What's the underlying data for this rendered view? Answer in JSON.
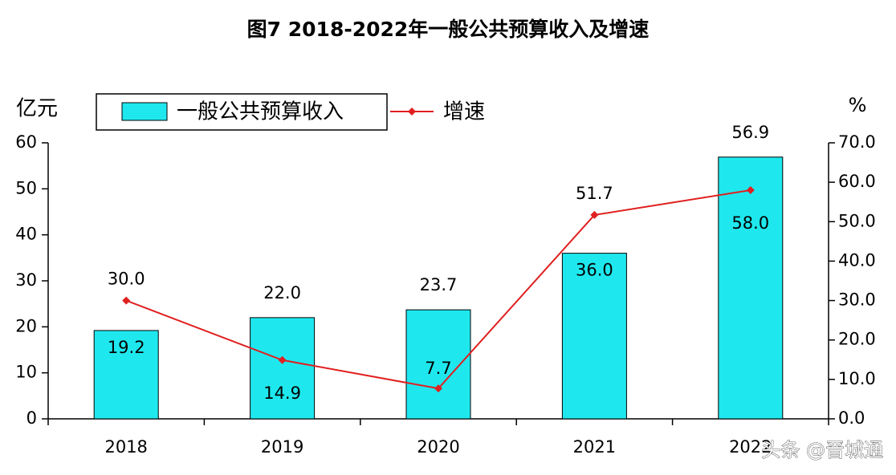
{
  "chart_data": {
    "type": "bar-line",
    "title": "图7 2018-2022年一般公共预算收入及增速",
    "y_axis_label": "亿元",
    "y2_axis_label": "%",
    "categories": [
      "2018",
      "2019",
      "2020",
      "2021",
      "2022"
    ],
    "series": [
      {
        "name": "一般公共预算收入",
        "type": "bar",
        "color": "#1ee8ee",
        "values": [
          19.2,
          22.0,
          23.7,
          36.0,
          56.9
        ],
        "value_labels": [
          "19.2",
          "22.0",
          "23.7",
          "36.0",
          "56.9"
        ]
      },
      {
        "name": "增速",
        "type": "line",
        "axis": "y2",
        "color": "#e02020",
        "values": [
          30.0,
          14.9,
          7.7,
          51.7,
          58.0
        ],
        "value_labels": [
          "30.0",
          "14.9",
          "7.7",
          "51.7",
          "58.0"
        ]
      }
    ],
    "ylim": [
      0,
      60
    ],
    "yticks": [
      0,
      10,
      20,
      30,
      40,
      50,
      60
    ],
    "y2lim": [
      0,
      70
    ],
    "y2ticks": [
      {
        "value": 0,
        "label": "0.0"
      },
      {
        "value": 10,
        "label": "10.0"
      },
      {
        "value": 20,
        "label": "20.0"
      },
      {
        "value": 30,
        "label": "30.0"
      },
      {
        "value": 40,
        "label": "40.0"
      },
      {
        "value": 50,
        "label": "50.0"
      },
      {
        "value": 60,
        "label": "60.0"
      },
      {
        "value": 70,
        "label": "70.0"
      }
    ],
    "watermark": "头条 @晋城通"
  }
}
